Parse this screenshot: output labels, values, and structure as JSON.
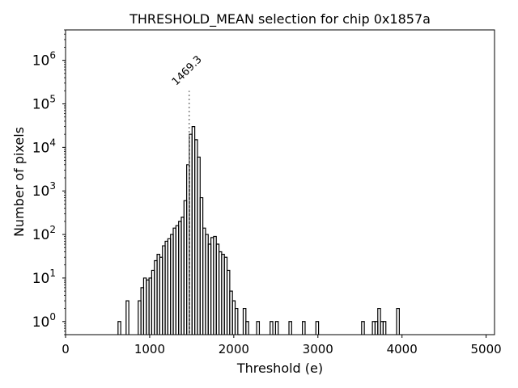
{
  "chart_data": {
    "type": "histogram",
    "title": "THRESHOLD_MEAN selection for chip 0x1857a",
    "xlabel": "Threshold (e)",
    "ylabel": "Number of pixels",
    "xlim": [
      0,
      5100
    ],
    "ylim": [
      0.5,
      5000000
    ],
    "yscale": "log",
    "x_ticks": [
      0,
      1000,
      2000,
      3000,
      4000,
      5000
    ],
    "x_tick_labels": [
      "0",
      "1000",
      "2000",
      "3000",
      "4000",
      "5000"
    ],
    "y_ticks": [
      1,
      10,
      100,
      1000,
      10000,
      100000,
      1000000
    ],
    "y_tick_labels": [
      {
        "base": "10",
        "exp": "0"
      },
      {
        "base": "10",
        "exp": "1"
      },
      {
        "base": "10",
        "exp": "2"
      },
      {
        "base": "10",
        "exp": "3"
      },
      {
        "base": "10",
        "exp": "4"
      },
      {
        "base": "10",
        "exp": "5"
      },
      {
        "base": "10",
        "exp": "6"
      }
    ],
    "bin_width": 32,
    "bins": [
      [
        624,
        1
      ],
      [
        720,
        3
      ],
      [
        864,
        3
      ],
      [
        896,
        6
      ],
      [
        928,
        10
      ],
      [
        960,
        9
      ],
      [
        992,
        10
      ],
      [
        1024,
        15
      ],
      [
        1056,
        25
      ],
      [
        1088,
        35
      ],
      [
        1120,
        30
      ],
      [
        1152,
        55
      ],
      [
        1184,
        70
      ],
      [
        1216,
        80
      ],
      [
        1248,
        100
      ],
      [
        1280,
        140
      ],
      [
        1312,
        160
      ],
      [
        1344,
        200
      ],
      [
        1376,
        250
      ],
      [
        1408,
        600
      ],
      [
        1440,
        4000
      ],
      [
        1472,
        20000
      ],
      [
        1504,
        30000
      ],
      [
        1536,
        15000
      ],
      [
        1568,
        6000
      ],
      [
        1600,
        700
      ],
      [
        1632,
        140
      ],
      [
        1664,
        100
      ],
      [
        1696,
        60
      ],
      [
        1728,
        85
      ],
      [
        1760,
        90
      ],
      [
        1792,
        60
      ],
      [
        1824,
        40
      ],
      [
        1856,
        35
      ],
      [
        1888,
        30
      ],
      [
        1920,
        15
      ],
      [
        1952,
        5
      ],
      [
        1984,
        3
      ],
      [
        2016,
        2
      ],
      [
        2048,
        0.5
      ],
      [
        2112,
        2
      ],
      [
        2144,
        1
      ],
      [
        2272,
        1
      ],
      [
        2432,
        1
      ],
      [
        2496,
        1
      ],
      [
        2656,
        1
      ],
      [
        2816,
        1
      ],
      [
        2976,
        1
      ],
      [
        3520,
        1
      ],
      [
        3648,
        1
      ],
      [
        3680,
        1
      ],
      [
        3712,
        2
      ],
      [
        3744,
        1
      ],
      [
        3776,
        1
      ],
      [
        3936,
        2
      ]
    ],
    "annotation": {
      "x": 1469.3,
      "label": "1469.3",
      "line_top_value": 200000,
      "line_style": "dotted",
      "color": "#808080"
    }
  }
}
